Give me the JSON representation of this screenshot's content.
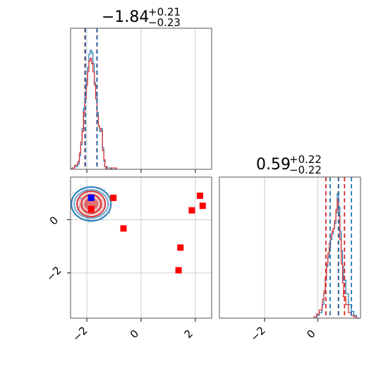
{
  "chart_data": [
    {
      "type": "histogram",
      "panel": "top-left",
      "title": {
        "value": "−1.84",
        "upper": "+0.21",
        "lower": "−0.23"
      },
      "xlim": [
        -2.6,
        2.6
      ],
      "x_ticks": [
        -2,
        0,
        2
      ],
      "grid": true,
      "bin_centers": [
        -2.5,
        -2.4,
        -2.3,
        -2.25,
        -2.2,
        -2.15,
        -2.1,
        -2.05,
        -2.0,
        -1.95,
        -1.9,
        -1.85,
        -1.8,
        -1.75,
        -1.7,
        -1.65,
        -1.6,
        -1.55,
        -1.5,
        -1.45,
        -1.4,
        -1.35,
        -1.3,
        -1.2,
        -1.0
      ],
      "series": [
        {
          "color": "#1f77b4",
          "values": [
            0.01,
            0.02,
            0.04,
            0.1,
            0.18,
            0.3,
            0.45,
            0.55,
            0.66,
            0.75,
            0.85,
            0.88,
            0.86,
            0.78,
            0.64,
            0.55,
            0.42,
            0.32,
            0.28,
            0.3,
            0.16,
            0.06,
            0.02,
            0.01,
            0.0
          ]
        },
        {
          "color": "#d62728",
          "values": [
            0.01,
            0.03,
            0.06,
            0.12,
            0.2,
            0.28,
            0.42,
            0.52,
            0.62,
            0.72,
            0.8,
            0.82,
            0.78,
            0.72,
            0.62,
            0.52,
            0.4,
            0.32,
            0.3,
            0.28,
            0.14,
            0.07,
            0.02,
            0.0,
            0.01
          ]
        }
      ],
      "quantile_lines": [
        {
          "x": -2.07,
          "color": "#d62728"
        },
        {
          "x": -2.05,
          "color": "#1f77b4"
        },
        {
          "x": -1.63,
          "color": "#d62728"
        },
        {
          "x": -1.62,
          "color": "#1f77b4"
        }
      ]
    },
    {
      "type": "scatter",
      "panel": "bottom-left",
      "xlim": [
        -2.6,
        2.6
      ],
      "ylim": [
        -3.7,
        1.6
      ],
      "x_ticks": [
        -2,
        0,
        2
      ],
      "y_ticks": [
        0,
        -2
      ],
      "grid": true,
      "contour_center": [
        -1.84,
        0.59
      ],
      "red_points": [
        {
          "x": -1.02,
          "y": 0.82
        },
        {
          "x": -0.65,
          "y": -0.33
        },
        {
          "x": 1.45,
          "y": -1.05
        },
        {
          "x": 1.38,
          "y": -1.9
        },
        {
          "x": 1.87,
          "y": 0.35
        },
        {
          "x": 2.17,
          "y": 0.9
        },
        {
          "x": 2.27,
          "y": 0.52
        },
        {
          "x": -1.84,
          "y": 0.4
        }
      ],
      "blue_points": [
        {
          "x": -1.84,
          "y": 0.82
        }
      ]
    },
    {
      "type": "histogram",
      "panel": "bottom-right",
      "title": {
        "value": "0.59",
        "upper": "+0.22",
        "lower": "−0.22"
      },
      "xlim": [
        -3.7,
        1.6
      ],
      "x_ticks": [
        -2,
        0
      ],
      "grid": true,
      "bin_centers": [
        -0.1,
        0.0,
        0.1,
        0.2,
        0.25,
        0.3,
        0.35,
        0.4,
        0.45,
        0.5,
        0.55,
        0.6,
        0.65,
        0.7,
        0.75,
        0.8,
        0.85,
        0.9,
        0.95,
        1.0,
        1.1,
        1.2,
        1.3,
        1.4,
        1.5
      ],
      "series": [
        {
          "color": "#1f77b4",
          "values": [
            0.0,
            0.02,
            0.04,
            0.1,
            0.18,
            0.28,
            0.38,
            0.45,
            0.52,
            0.58,
            0.62,
            0.66,
            0.7,
            0.78,
            0.92,
            0.82,
            0.64,
            0.5,
            0.38,
            0.28,
            0.18,
            0.1,
            0.05,
            0.02,
            0.0
          ]
        },
        {
          "color": "#d62728",
          "values": [
            0.01,
            0.03,
            0.06,
            0.14,
            0.2,
            0.3,
            0.4,
            0.48,
            0.55,
            0.6,
            0.64,
            0.66,
            0.72,
            0.8,
            0.88,
            0.76,
            0.58,
            0.4,
            0.26,
            0.16,
            0.1,
            0.04,
            0.02,
            0.01,
            0.0
          ]
        }
      ],
      "quantile_lines": [
        {
          "x": 0.3,
          "color": "#d62728"
        },
        {
          "x": 0.46,
          "color": "#1f77b4"
        },
        {
          "x": 0.77,
          "color": "#d62728"
        },
        {
          "x": 0.78,
          "color": "#1f77b4"
        },
        {
          "x": 1.0,
          "color": "#d62728"
        },
        {
          "x": 1.26,
          "color": "#1f77b4"
        }
      ]
    }
  ]
}
